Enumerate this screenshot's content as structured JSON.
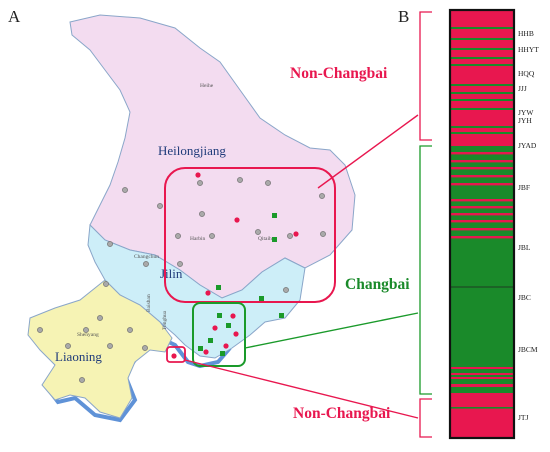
{
  "panels": {
    "a": "A",
    "b": "B"
  },
  "regions": {
    "heilongjiang": "Heilongjiang",
    "jilin": "Jilin",
    "liaoning": "Liaoning"
  },
  "cities": {
    "heihe": "Heihe",
    "harbin": "Harbin",
    "qiqihar": "Qitaihe",
    "changchun": "Changchun",
    "shenyang": "Shenyang",
    "baishan": "Baishan",
    "tonghua": "Tonghua"
  },
  "groups": {
    "non_changbai_top": "Non-Changbai",
    "changbai": "Changbai",
    "non_changbai_bottom": "Non-Changbai"
  },
  "populations": [
    "HHB",
    "HHYT",
    "HQQ",
    "JJJ",
    "JYW",
    "JYH",
    "JYAD",
    "JBF",
    "JBL",
    "JBC",
    "JBCM",
    "JTJ"
  ],
  "colors": {
    "non_changbai": "#e8174f",
    "changbai": "#1a8a2a",
    "heilongjiang_fill": "#f3dcf0",
    "jilin_fill": "#cdeef8",
    "liaoning_fill": "#f6f3b4",
    "sea": "#2a6ec9",
    "red_box": "#e8174f",
    "green_box": "#1a9a2a"
  }
}
